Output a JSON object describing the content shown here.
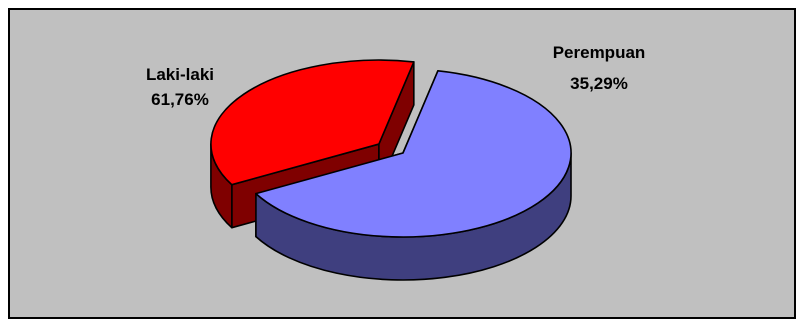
{
  "chart_data": {
    "type": "pie",
    "style": "3d-exploded",
    "title": "",
    "categories": [
      "Laki-laki",
      "Perempuan"
    ],
    "values": [
      61.76,
      35.29
    ],
    "labels": [
      "61,76%",
      "35,29%"
    ],
    "colors": [
      "#8080ff",
      "#ff0000"
    ],
    "side_colors": [
      "#3f3f7f",
      "#7f0000"
    ],
    "background": "#c0c0c0",
    "border_color": "#000000",
    "legend": "none"
  }
}
